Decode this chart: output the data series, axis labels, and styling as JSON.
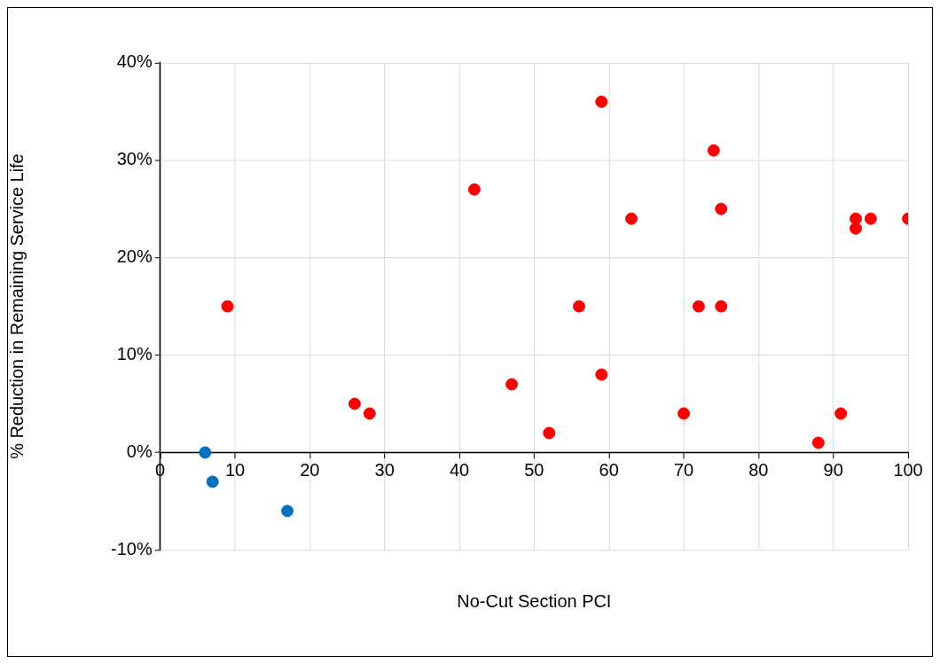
{
  "chart_data": {
    "type": "scatter",
    "xlabel": "No-Cut Section PCI",
    "ylabel": "% Reduction in Remaining Service Life",
    "xlim": [
      0,
      100
    ],
    "xticks": [
      0,
      10,
      20,
      30,
      40,
      50,
      60,
      70,
      80,
      90,
      100
    ],
    "ylim": [
      -10,
      40
    ],
    "yticks": [
      {
        "value": -10,
        "label": "-10%"
      },
      {
        "value": 0,
        "label": "0%"
      },
      {
        "value": 10,
        "label": "10%"
      },
      {
        "value": 20,
        "label": "20%"
      },
      {
        "value": 30,
        "label": "30%"
      },
      {
        "value": 40,
        "label": "40%"
      }
    ],
    "grid": true,
    "legend": false,
    "marker": "circle",
    "series": [
      {
        "color": "#ff0000",
        "x": [
          9,
          26,
          28,
          42,
          47,
          52,
          56,
          59,
          59,
          63,
          70,
          72,
          74,
          75,
          75,
          88,
          91,
          93,
          93,
          95,
          100
        ],
        "values": [
          15,
          5,
          4,
          27,
          7,
          2,
          15,
          36,
          8,
          24,
          4,
          15,
          31,
          25,
          15,
          1,
          4,
          24,
          23,
          24,
          24
        ]
      },
      {
        "color": "#0070c0",
        "x": [
          6,
          7,
          17
        ],
        "values": [
          0,
          -3,
          -6
        ]
      }
    ]
  }
}
